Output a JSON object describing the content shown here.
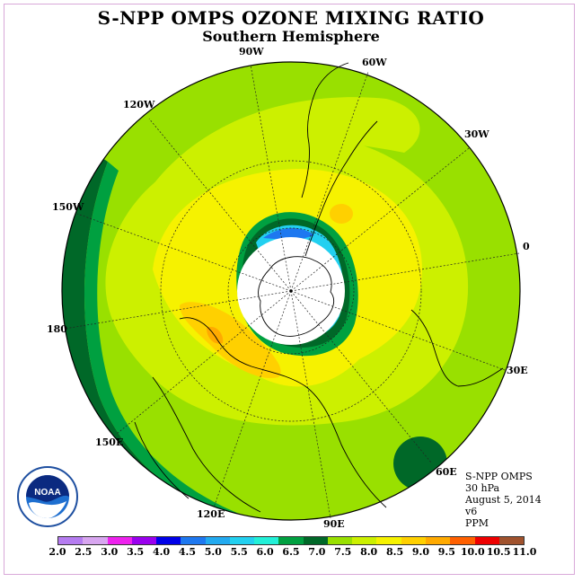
{
  "title": "S-NPP OMPS OZONE MIXING RATIO",
  "subtitle": "Southern Hemisphere",
  "lon_labels": [
    "90W",
    "60W",
    "30W",
    "0",
    "30E",
    "60E",
    "90E",
    "120E",
    "150E",
    "180",
    "150W",
    "120W"
  ],
  "info": {
    "instrument": "S-NPP OMPS",
    "level": "30 hPa",
    "date": "August 5, 2014",
    "version": "v6",
    "units": "PPM"
  },
  "logo_text": "NOAA",
  "colorbar": {
    "ticks": [
      "2.0",
      "2.5",
      "3.0",
      "3.5",
      "4.0",
      "4.5",
      "5.0",
      "5.5",
      "6.0",
      "6.5",
      "7.0",
      "7.5",
      "8.0",
      "8.5",
      "9.0",
      "9.5",
      "10.0",
      "10.5",
      "11.0"
    ],
    "colors": [
      "#b57cf0",
      "#d8a6f0",
      "#ee22ee",
      "#9a00ee",
      "#0000e8",
      "#1e78f0",
      "#22aaf0",
      "#22d0f0",
      "#22f0d8",
      "#00a040",
      "#006828",
      "#99e000",
      "#ccf000",
      "#f6f200",
      "#ffd000",
      "#ffaa00",
      "#ff6000",
      "#ee0000",
      "#a0522d"
    ]
  }
}
